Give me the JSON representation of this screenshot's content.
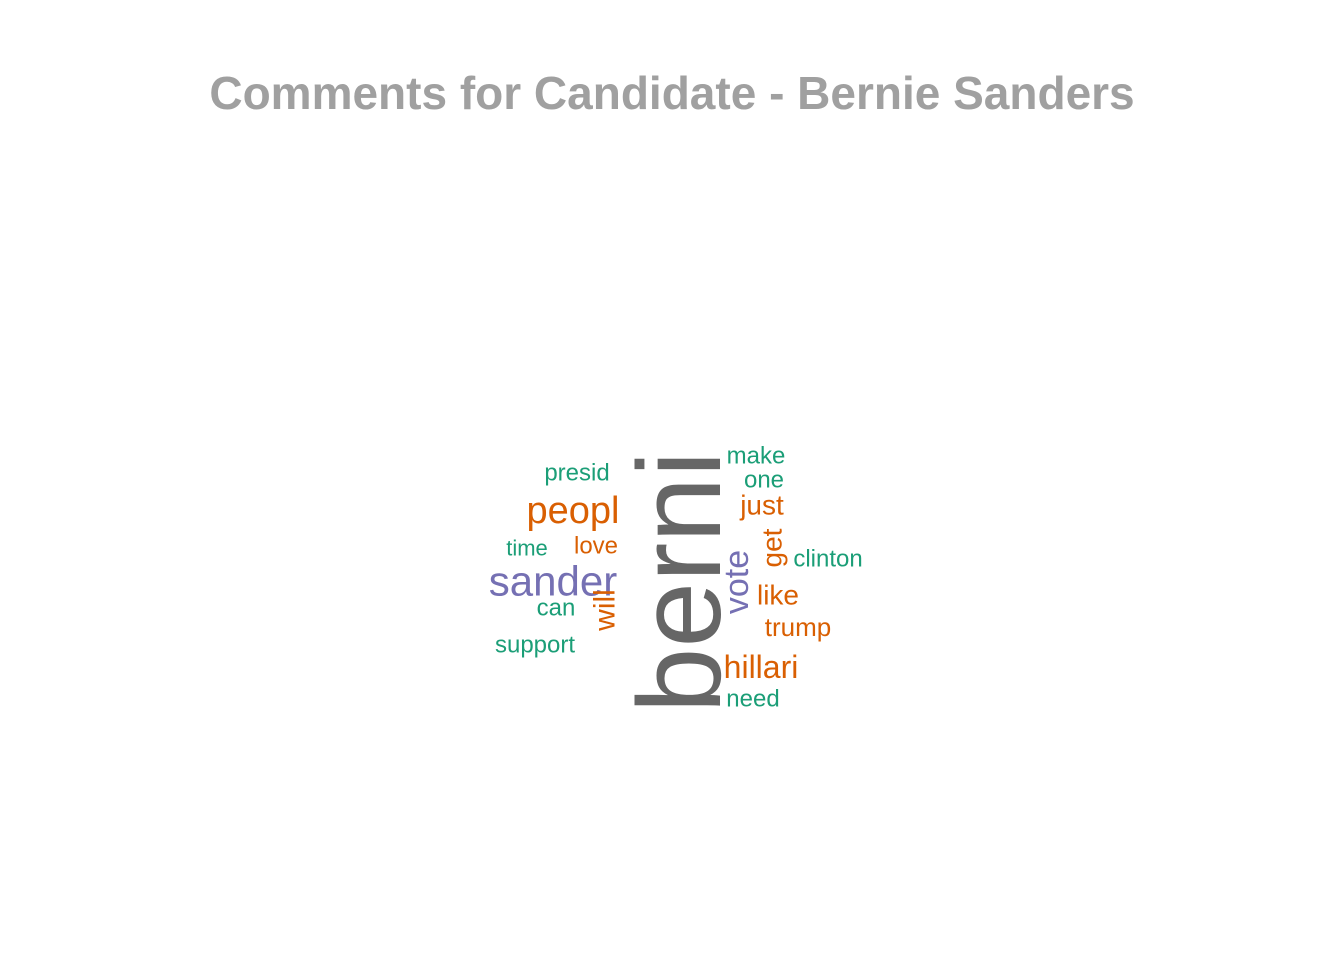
{
  "chart_data": {
    "type": "wordcloud",
    "title": "Comments for Candidate - Bernie Sanders",
    "colors": {
      "small": "#1b9e77",
      "medium": "#d95f02",
      "large": "#7570b3",
      "largest": "#666666",
      "title": "#a0a0a0"
    },
    "words": [
      {
        "word": "berni",
        "weight": 100,
        "tier": "largest"
      },
      {
        "word": "sander",
        "weight": 40,
        "tier": "large"
      },
      {
        "word": "vote",
        "weight": 34,
        "tier": "large"
      },
      {
        "word": "peopl",
        "weight": 36,
        "tier": "medium"
      },
      {
        "word": "hillari",
        "weight": 30,
        "tier": "medium"
      },
      {
        "word": "will",
        "weight": 28,
        "tier": "medium"
      },
      {
        "word": "just",
        "weight": 26,
        "tier": "medium"
      },
      {
        "word": "get",
        "weight": 26,
        "tier": "medium"
      },
      {
        "word": "like",
        "weight": 26,
        "tier": "medium"
      },
      {
        "word": "trump",
        "weight": 24,
        "tier": "medium"
      },
      {
        "word": "love",
        "weight": 22,
        "tier": "medium"
      },
      {
        "word": "presid",
        "weight": 22,
        "tier": "small"
      },
      {
        "word": "can",
        "weight": 22,
        "tier": "small"
      },
      {
        "word": "support",
        "weight": 22,
        "tier": "small"
      },
      {
        "word": "clinton",
        "weight": 22,
        "tier": "small"
      },
      {
        "word": "make",
        "weight": 22,
        "tier": "small"
      },
      {
        "word": "time",
        "weight": 22,
        "tier": "small"
      },
      {
        "word": "need",
        "weight": 22,
        "tier": "small"
      },
      {
        "word": "one",
        "weight": 22,
        "tier": "small"
      }
    ]
  }
}
